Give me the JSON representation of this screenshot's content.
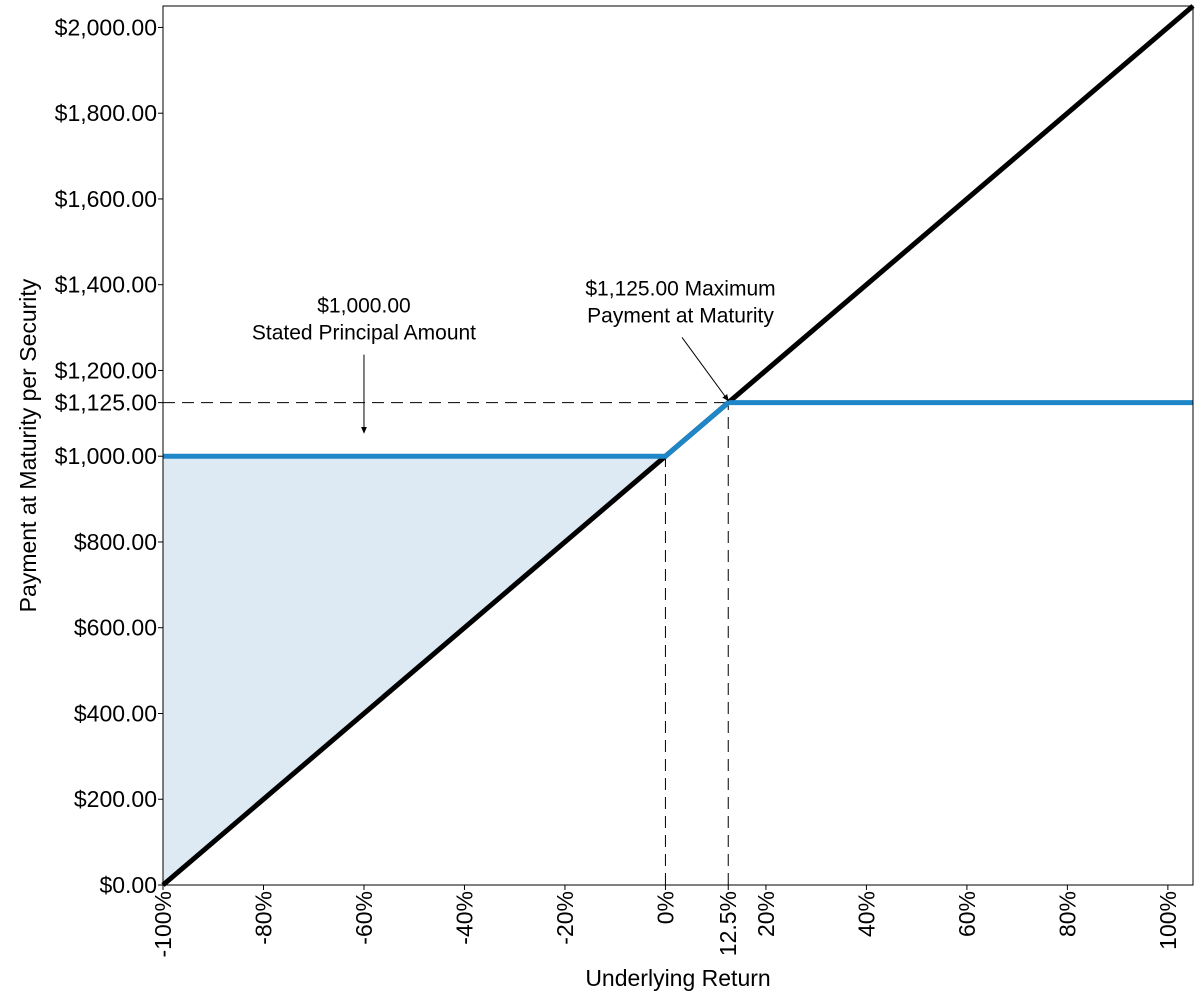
{
  "chart_data": {
    "type": "line",
    "title": "",
    "xlabel": "Underlying Return",
    "ylabel": "Payment at Maturity per Security",
    "xlim": [
      -100,
      105
    ],
    "ylim": [
      0,
      2050
    ],
    "x_ticks": [
      {
        "value": -100,
        "label": "-100%"
      },
      {
        "value": -80,
        "label": "-80%"
      },
      {
        "value": -60,
        "label": "-60%"
      },
      {
        "value": -40,
        "label": "-40%"
      },
      {
        "value": -20,
        "label": "-20%"
      },
      {
        "value": 0,
        "label": "0%"
      },
      {
        "value": 12.5,
        "label": "12.5%"
      },
      {
        "value": 20,
        "label": "20%"
      },
      {
        "value": 40,
        "label": "40%"
      },
      {
        "value": 60,
        "label": "60%"
      },
      {
        "value": 80,
        "label": "80%"
      },
      {
        "value": 100,
        "label": "100%"
      }
    ],
    "y_ticks": [
      {
        "value": 0,
        "label": "$0.00"
      },
      {
        "value": 200,
        "label": "$200.00"
      },
      {
        "value": 400,
        "label": "$400.00"
      },
      {
        "value": 600,
        "label": "$600.00"
      },
      {
        "value": 800,
        "label": "$800.00"
      },
      {
        "value": 1000,
        "label": "$1,000.00"
      },
      {
        "value": 1125,
        "label": "$1,125.00"
      },
      {
        "value": 1200,
        "label": "$1,200.00"
      },
      {
        "value": 1400,
        "label": "$1,400.00"
      },
      {
        "value": 1600,
        "label": "$1,600.00"
      },
      {
        "value": 1800,
        "label": "$1,800.00"
      },
      {
        "value": 2000,
        "label": "$2,000.00"
      }
    ],
    "series": [
      {
        "color": "#000000",
        "x": [
          -100,
          105
        ],
        "y": [
          0,
          2050
        ]
      },
      {
        "color": "#1f87c8",
        "x": [
          -100,
          0,
          12.5,
          105
        ],
        "y": [
          1000,
          1000,
          1125,
          1125
        ]
      }
    ],
    "shaded_region": {
      "color": "#ddeaf4",
      "x": [
        -100,
        0,
        -100
      ],
      "y": [
        1000,
        1000,
        0
      ]
    },
    "reference_lines": [
      {
        "x": [
          -100,
          12.5
        ],
        "y": [
          1125,
          1125
        ]
      },
      {
        "x": [
          0,
          0
        ],
        "y": [
          0,
          1000
        ]
      },
      {
        "x": [
          12.5,
          12.5
        ],
        "y": [
          0,
          1125
        ]
      }
    ],
    "annotations": [
      {
        "lines": [
          "$1,000.00",
          "Stated Principal Amount"
        ],
        "text_at": {
          "x": -60,
          "y": 1335
        },
        "arrow_to": {
          "x": -60,
          "y": 1050
        }
      },
      {
        "lines": [
          "$1,125.00 Maximum",
          "Payment at Maturity"
        ],
        "text_at": {
          "x": 3,
          "y": 1375
        },
        "arrow_to": {
          "x": 12.5,
          "y": 1125
        }
      }
    ],
    "grid": false,
    "legend": "none"
  }
}
